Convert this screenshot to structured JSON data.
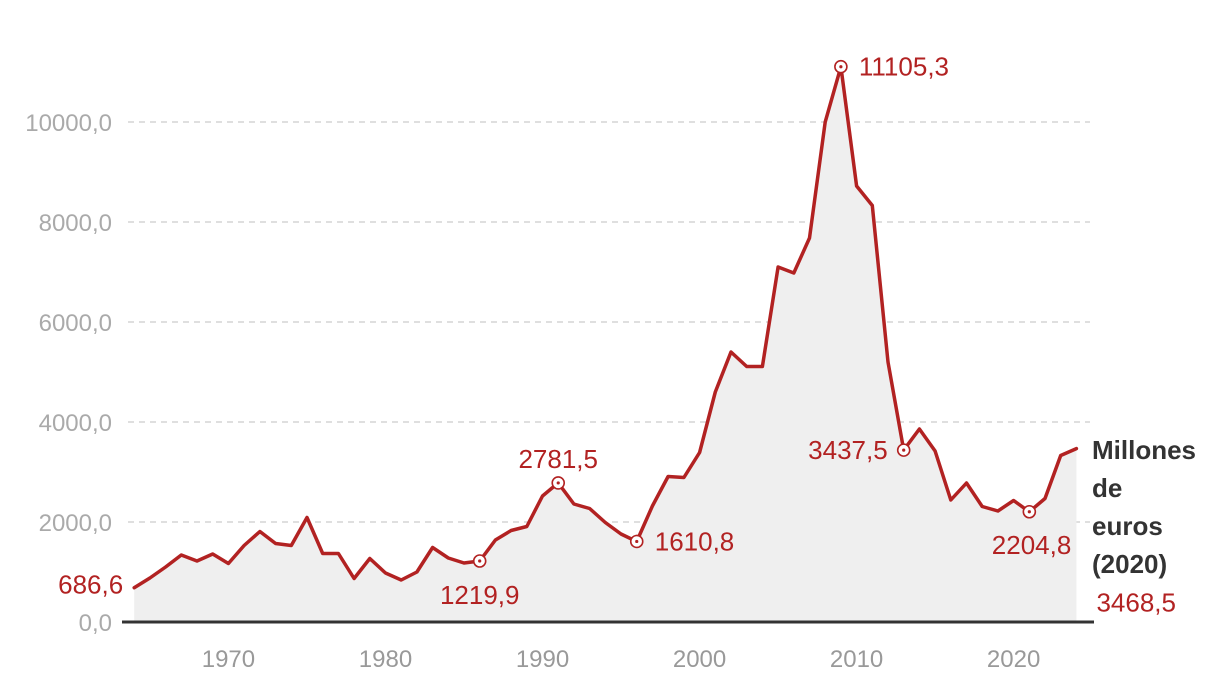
{
  "chart_data": {
    "type": "area",
    "unit_label_lines": [
      "Millones",
      "de",
      "euros",
      "(2020)"
    ],
    "x": [
      1964,
      1965,
      1966,
      1967,
      1968,
      1969,
      1970,
      1971,
      1972,
      1973,
      1974,
      1975,
      1976,
      1977,
      1978,
      1979,
      1980,
      1981,
      1982,
      1983,
      1984,
      1985,
      1986,
      1987,
      1988,
      1989,
      1990,
      1991,
      1992,
      1993,
      1994,
      1995,
      1996,
      1997,
      1998,
      1999,
      2000,
      2001,
      2002,
      2003,
      2004,
      2005,
      2006,
      2007,
      2008,
      2009,
      2010,
      2011,
      2012,
      2013,
      2014,
      2015,
      2016,
      2017,
      2018,
      2019,
      2020,
      2021,
      2022,
      2023,
      2024
    ],
    "values": [
      686.6,
      880,
      1100,
      1340,
      1220,
      1360,
      1170,
      1530,
      1810,
      1570,
      1530,
      2090,
      1370,
      1370,
      870,
      1270,
      980,
      840,
      1000,
      1490,
      1280,
      1180,
      1219.9,
      1640,
      1830,
      1910,
      2520,
      2781.5,
      2360,
      2270,
      1990,
      1760,
      1610.8,
      2320,
      2910,
      2890,
      3390,
      4600,
      5400,
      5110,
      5110,
      7100,
      6980,
      7680,
      10000,
      11105.3,
      8720,
      8330,
      5200,
      3437.5,
      3860,
      3420,
      2440,
      2780,
      2310,
      2220,
      2430,
      2204.8,
      2470,
      3330,
      3468.5
    ],
    "ylim": [
      0,
      11500
    ],
    "yticks": [
      0,
      2000,
      4000,
      6000,
      8000,
      10000
    ],
    "ytick_labels": [
      "0,0",
      "2000,0",
      "4000,0",
      "6000,0",
      "8000,0",
      "10000,0"
    ],
    "xticks": [
      1970,
      1980,
      1990,
      2000,
      2010,
      2020
    ],
    "xtick_labels": [
      "1970",
      "1980",
      "1990",
      "2000",
      "2010",
      "2020"
    ],
    "xlim": [
      1958,
      2025.5
    ],
    "grid": true,
    "annotations": [
      {
        "x": 1964,
        "y": 686.6,
        "label": "686,6",
        "marker": false
      },
      {
        "x": 1986,
        "y": 1219.9,
        "label": "1219,9",
        "marker": true
      },
      {
        "x": 1991,
        "y": 2781.5,
        "label": "2781,5",
        "marker": true
      },
      {
        "x": 1996,
        "y": 1610.8,
        "label": "1610,8",
        "marker": true
      },
      {
        "x": 2009,
        "y": 11105.3,
        "label": "11105,3",
        "marker": true
      },
      {
        "x": 2013,
        "y": 3437.5,
        "label": "3437,5",
        "marker": true
      },
      {
        "x": 2021,
        "y": 2204.8,
        "label": "2204,8",
        "marker": true
      },
      {
        "x": 2024,
        "y": 3468.5,
        "label": "3468,5",
        "marker": false
      }
    ],
    "colors": {
      "line": "#b22222",
      "area": "#efefef",
      "grid": "#cccccc",
      "axis": "#333333"
    }
  }
}
